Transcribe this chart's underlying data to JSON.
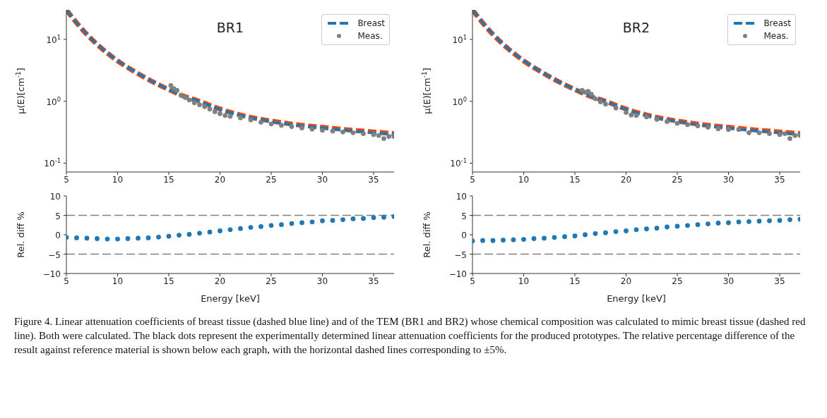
{
  "chart_data": [
    {
      "type": "line",
      "title": "BR1",
      "ylabel": "μ(E)[cm$^{-1}$]",
      "xlim": [
        5,
        37
      ],
      "xticks": [
        5,
        10,
        15,
        20,
        25,
        30,
        35
      ],
      "ylim": [
        0.072,
        30
      ],
      "yticks": [
        {
          "value": 0.1,
          "label": "10$^{-1}$"
        },
        {
          "value": 1,
          "label": "10$^{0}$"
        },
        {
          "value": 10,
          "label": "10$^{1}$"
        }
      ],
      "log": "y",
      "grid": false,
      "legend": "top right",
      "marker": "none",
      "annotations": [
        "Figure 4. Linear attenuation coefficients of breast tissue (dashed blue line) and of the TEM (BR1 and BR2) whose chemical composition was calculated to mimic breast tissue (dashed red line). Both were calculated. The black dots represent the experimentally determined linear attenuation coefficients for the produced prototypes. The relative percentage difference of the result against reference material is shown below each graph, with the horizontal dashed lines corresponding to ±5%."
      ],
      "series": [
        {
          "type": "line",
          "color": "#ff4500",
          "line_style": "dashed",
          "x": [
            5,
            6,
            7,
            8,
            9,
            10,
            12,
            14,
            15,
            16,
            18,
            20,
            22,
            25,
            28,
            30,
            33,
            35,
            37
          ],
          "values": [
            30,
            18.5,
            12,
            8.3,
            6.0,
            4.5,
            2.8,
            1.85,
            1.55,
            1.3,
            1.0,
            0.75,
            0.6,
            0.48,
            0.41,
            0.38,
            0.34,
            0.32,
            0.3
          ]
        },
        {
          "type": "line",
          "name": "Breast",
          "color": "#1f77b4",
          "line_style": "dashed",
          "x": [
            5,
            6,
            7,
            8,
            9,
            10,
            12,
            14,
            15,
            16,
            18,
            20,
            22,
            25,
            28,
            30,
            33,
            35,
            37
          ],
          "values": [
            30,
            18.6,
            12.1,
            8.4,
            6.1,
            4.55,
            2.82,
            1.86,
            1.55,
            1.3,
            0.99,
            0.74,
            0.59,
            0.47,
            0.4,
            0.37,
            0.33,
            0.31,
            0.29
          ]
        },
        {
          "type": "scatter",
          "name": "Meas.",
          "color": "#808080",
          "marker": "circle",
          "x": [
            15.2,
            15.5,
            15.8,
            16.2,
            16.6,
            17,
            17.5,
            18,
            18.5,
            19,
            19.5,
            20,
            20.5,
            21,
            22,
            23,
            24,
            25,
            26,
            27,
            28,
            29,
            30,
            31,
            32,
            33,
            34,
            35,
            35.5,
            36,
            36.5,
            37
          ],
          "values": [
            1.8,
            1.6,
            1.5,
            1.25,
            1.15,
            1.05,
            0.95,
            0.88,
            0.82,
            0.75,
            0.68,
            0.63,
            0.59,
            0.57,
            0.54,
            0.5,
            0.46,
            0.43,
            0.41,
            0.39,
            0.37,
            0.355,
            0.34,
            0.33,
            0.32,
            0.31,
            0.3,
            0.29,
            0.28,
            0.25,
            0.27,
            0.27
          ]
        }
      ]
    },
    {
      "type": "line",
      "title": "BR2",
      "ylabel": "μ(E)[cm$^{-1}$]",
      "xlim": [
        5,
        37
      ],
      "xticks": [
        5,
        10,
        15,
        20,
        25,
        30,
        35
      ],
      "ylim": [
        0.072,
        30
      ],
      "yticks": [
        {
          "value": 0.1,
          "label": "10$^{-1}$"
        },
        {
          "value": 1,
          "label": "10$^{0}$"
        },
        {
          "value": 10,
          "label": "10$^{1}$"
        }
      ],
      "log": "y",
      "grid": false,
      "legend": "top right",
      "marker": "none",
      "series": [
        {
          "type": "line",
          "color": "#ff4500",
          "line_style": "dashed",
          "x": [
            5,
            6,
            7,
            8,
            9,
            10,
            12,
            14,
            15,
            16,
            18,
            20,
            22,
            25,
            28,
            30,
            33,
            35,
            37
          ],
          "values": [
            30,
            18.5,
            12,
            8.3,
            6.0,
            4.5,
            2.8,
            1.85,
            1.55,
            1.3,
            1.0,
            0.75,
            0.6,
            0.48,
            0.41,
            0.38,
            0.34,
            0.32,
            0.3
          ]
        },
        {
          "type": "line",
          "name": "Breast",
          "color": "#1f77b4",
          "line_style": "dashed",
          "x": [
            5,
            6,
            7,
            8,
            9,
            10,
            12,
            14,
            15,
            16,
            18,
            20,
            22,
            25,
            28,
            30,
            33,
            35,
            37
          ],
          "values": [
            30,
            18.8,
            12.2,
            8.4,
            6.1,
            4.55,
            2.82,
            1.86,
            1.55,
            1.3,
            0.99,
            0.74,
            0.59,
            0.47,
            0.4,
            0.37,
            0.33,
            0.31,
            0.29
          ]
        },
        {
          "type": "scatter",
          "name": "Meas.",
          "color": "#808080",
          "marker": "circle",
          "x": [
            15.7,
            16,
            16.3,
            16.6,
            17,
            17.5,
            18,
            19,
            20,
            20.5,
            21,
            22,
            23,
            24,
            25,
            26,
            27,
            28,
            29,
            30,
            31,
            32,
            33,
            34,
            35,
            35.5,
            36,
            36.5,
            37
          ],
          "values": [
            1.5,
            1.4,
            1.45,
            1.3,
            1.1,
            0.98,
            0.9,
            0.78,
            0.66,
            0.6,
            0.59,
            0.56,
            0.51,
            0.47,
            0.44,
            0.42,
            0.4,
            0.38,
            0.36,
            0.35,
            0.35,
            0.31,
            0.31,
            0.3,
            0.29,
            0.3,
            0.25,
            0.28,
            0.28
          ]
        }
      ]
    },
    {
      "type": "scatter",
      "xlabel": "Energy [keV]",
      "ylabel": "Rel. diff %",
      "xlim": [
        5,
        37
      ],
      "xticks": [
        5,
        10,
        15,
        20,
        25,
        30,
        35
      ],
      "ylim": [
        -10,
        10
      ],
      "yticks": [
        {
          "value": -10,
          "label": "−10"
        },
        {
          "value": -5,
          "label": "−5"
        },
        0,
        5,
        10
      ],
      "grid": false,
      "marker": "circle",
      "ref_lines": [
        {
          "axis": "y",
          "value": 5,
          "color": "#808080",
          "line_style": "dashed"
        },
        {
          "axis": "y",
          "value": -5,
          "color": "#808080",
          "line_style": "dashed"
        }
      ],
      "x": [
        5,
        6,
        7,
        8,
        9,
        10,
        11,
        12,
        13,
        14,
        15,
        16,
        17,
        18,
        19,
        20,
        21,
        22,
        23,
        24,
        25,
        26,
        27,
        28,
        29,
        30,
        31,
        32,
        33,
        34,
        35,
        36,
        37
      ],
      "series": [
        {
          "color": "#1f77b4",
          "values": [
            -0.7,
            -0.8,
            -0.9,
            -1.0,
            -1.1,
            -1.1,
            -1.0,
            -0.9,
            -0.8,
            -0.6,
            -0.4,
            -0.1,
            0.1,
            0.4,
            0.7,
            1.0,
            1.3,
            1.6,
            1.9,
            2.1,
            2.4,
            2.6,
            2.9,
            3.1,
            3.3,
            3.6,
            3.7,
            3.9,
            4.1,
            4.2,
            4.4,
            4.5,
            4.7
          ]
        }
      ]
    },
    {
      "type": "scatter",
      "xlabel": "Energy [keV]",
      "ylabel": "Rel. diff %",
      "xlim": [
        5,
        37
      ],
      "xticks": [
        5,
        10,
        15,
        20,
        25,
        30,
        35
      ],
      "ylim": [
        -10,
        10
      ],
      "yticks": [
        {
          "value": -10,
          "label": "−10"
        },
        {
          "value": -5,
          "label": "−5"
        },
        0,
        5,
        10
      ],
      "grid": false,
      "marker": "circle",
      "ref_lines": [
        {
          "axis": "y",
          "value": 5,
          "color": "#808080",
          "line_style": "dashed"
        },
        {
          "axis": "y",
          "value": -5,
          "color": "#808080",
          "line_style": "dashed"
        }
      ],
      "x": [
        5,
        6,
        7,
        8,
        9,
        10,
        11,
        12,
        13,
        14,
        15,
        16,
        17,
        18,
        19,
        20,
        21,
        22,
        23,
        24,
        25,
        26,
        27,
        28,
        29,
        30,
        31,
        32,
        33,
        34,
        35,
        36,
        37
      ],
      "series": [
        {
          "color": "#1f77b4",
          "values": [
            -1.6,
            -1.5,
            -1.5,
            -1.4,
            -1.3,
            -1.2,
            -1.0,
            -0.9,
            -0.7,
            -0.5,
            -0.3,
            0.0,
            0.3,
            0.5,
            0.8,
            1.0,
            1.3,
            1.5,
            1.7,
            2.0,
            2.2,
            2.4,
            2.6,
            2.8,
            3.0,
            3.1,
            3.3,
            3.4,
            3.5,
            3.6,
            3.7,
            3.9,
            4.0
          ]
        }
      ]
    }
  ]
}
